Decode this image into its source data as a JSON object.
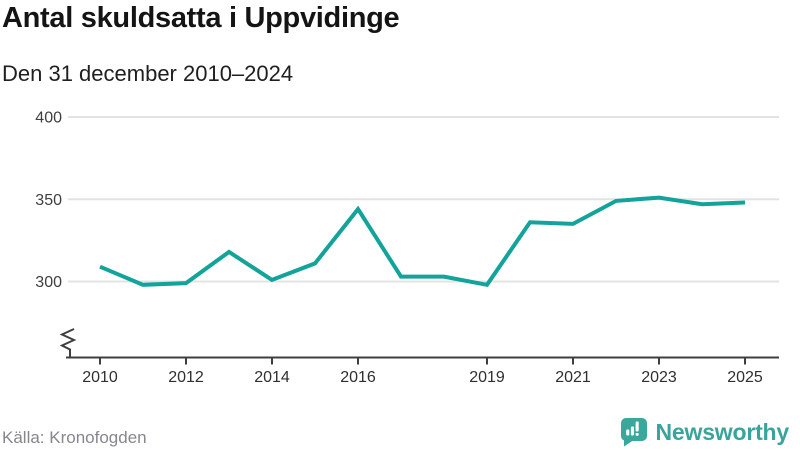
{
  "header": {
    "title": "Antal skuldsatta i Uppvidinge",
    "subtitle": "Den 31 december 2010–2024"
  },
  "chart_data": {
    "type": "line",
    "title": "Antal skuldsatta i Uppvidinge",
    "subtitle": "Den 31 december 2010–2024",
    "x": [
      2010,
      2011,
      2012,
      2013,
      2014,
      2015,
      2016,
      2017,
      2018,
      2019,
      2020,
      2021,
      2022,
      2023,
      2024,
      2025
    ],
    "series": [
      {
        "name": "Antal skuldsatta",
        "values": [
          309,
          298,
          299,
          318,
          301,
          311,
          344,
          303,
          303,
          298,
          336,
          335,
          349,
          351,
          347,
          348
        ]
      }
    ],
    "yticks": [
      300,
      350,
      400
    ],
    "xticks": [
      2010,
      2012,
      2014,
      2016,
      2019,
      2021,
      2023,
      2025
    ],
    "ylim": [
      300,
      400
    ],
    "axis_break": true,
    "grid": "horizontal",
    "legend": "none"
  },
  "footer": {
    "source": "Källa: Kronofogden",
    "logo_text": "Newsworthy"
  },
  "colors": {
    "line": "#12a39a",
    "logo": "#3aa79d",
    "logo_text": "#3aa49c",
    "grid": "#e3e3e3",
    "axis": "#3f3f3f",
    "tick_label": "#2f2f2f",
    "y_label": "#3f3f3f",
    "title": "#141414",
    "subtitle": "#1f1f1f",
    "muted": "#86868f",
    "background": "#ffffff"
  }
}
